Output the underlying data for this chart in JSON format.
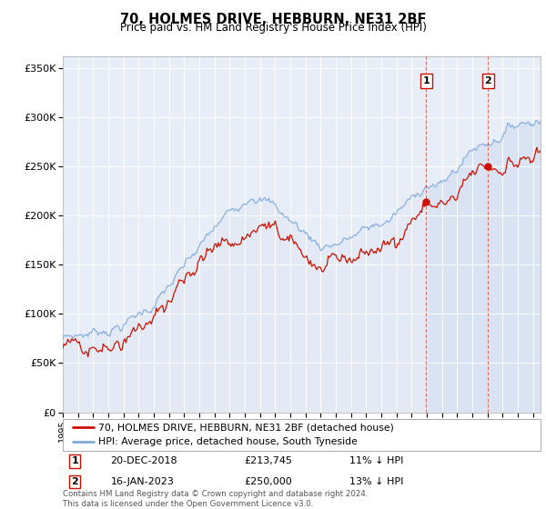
{
  "title": "70, HOLMES DRIVE, HEBBURN, NE31 2BF",
  "subtitle": "Price paid vs. HM Land Registry's House Price Index (HPI)",
  "ylabel_ticks": [
    "£0",
    "£50K",
    "£100K",
    "£150K",
    "£200K",
    "£250K",
    "£300K",
    "£350K"
  ],
  "ytick_values": [
    0,
    50000,
    100000,
    150000,
    200000,
    250000,
    300000,
    350000
  ],
  "ylim": [
    0,
    362000
  ],
  "xlim_start": 1995.0,
  "xlim_end": 2026.5,
  "background_color": "#ffffff",
  "plot_bg_color": "#e8eef8",
  "grid_color": "#ffffff",
  "hpi_color": "#7faadd",
  "hpi_fill_color": "#d0dcf0",
  "price_color": "#cc1100",
  "marker1_date": 2018.97,
  "marker1_value": 213745,
  "marker2_date": 2023.04,
  "marker2_value": 250000,
  "legend_label1": "70, HOLMES DRIVE, HEBBURN, NE31 2BF (detached house)",
  "legend_label2": "HPI: Average price, detached house, South Tyneside",
  "annotation1_date": "20-DEC-2018",
  "annotation1_price": "£213,745",
  "annotation1_hpi": "11% ↓ HPI",
  "annotation2_date": "16-JAN-2023",
  "annotation2_price": "£250,000",
  "annotation2_hpi": "13% ↓ HPI",
  "footer": "Contains HM Land Registry data © Crown copyright and database right 2024.\nThis data is licensed under the Open Government Licence v3.0.",
  "vline1_x": 2018.97,
  "vline2_x": 2023.04
}
